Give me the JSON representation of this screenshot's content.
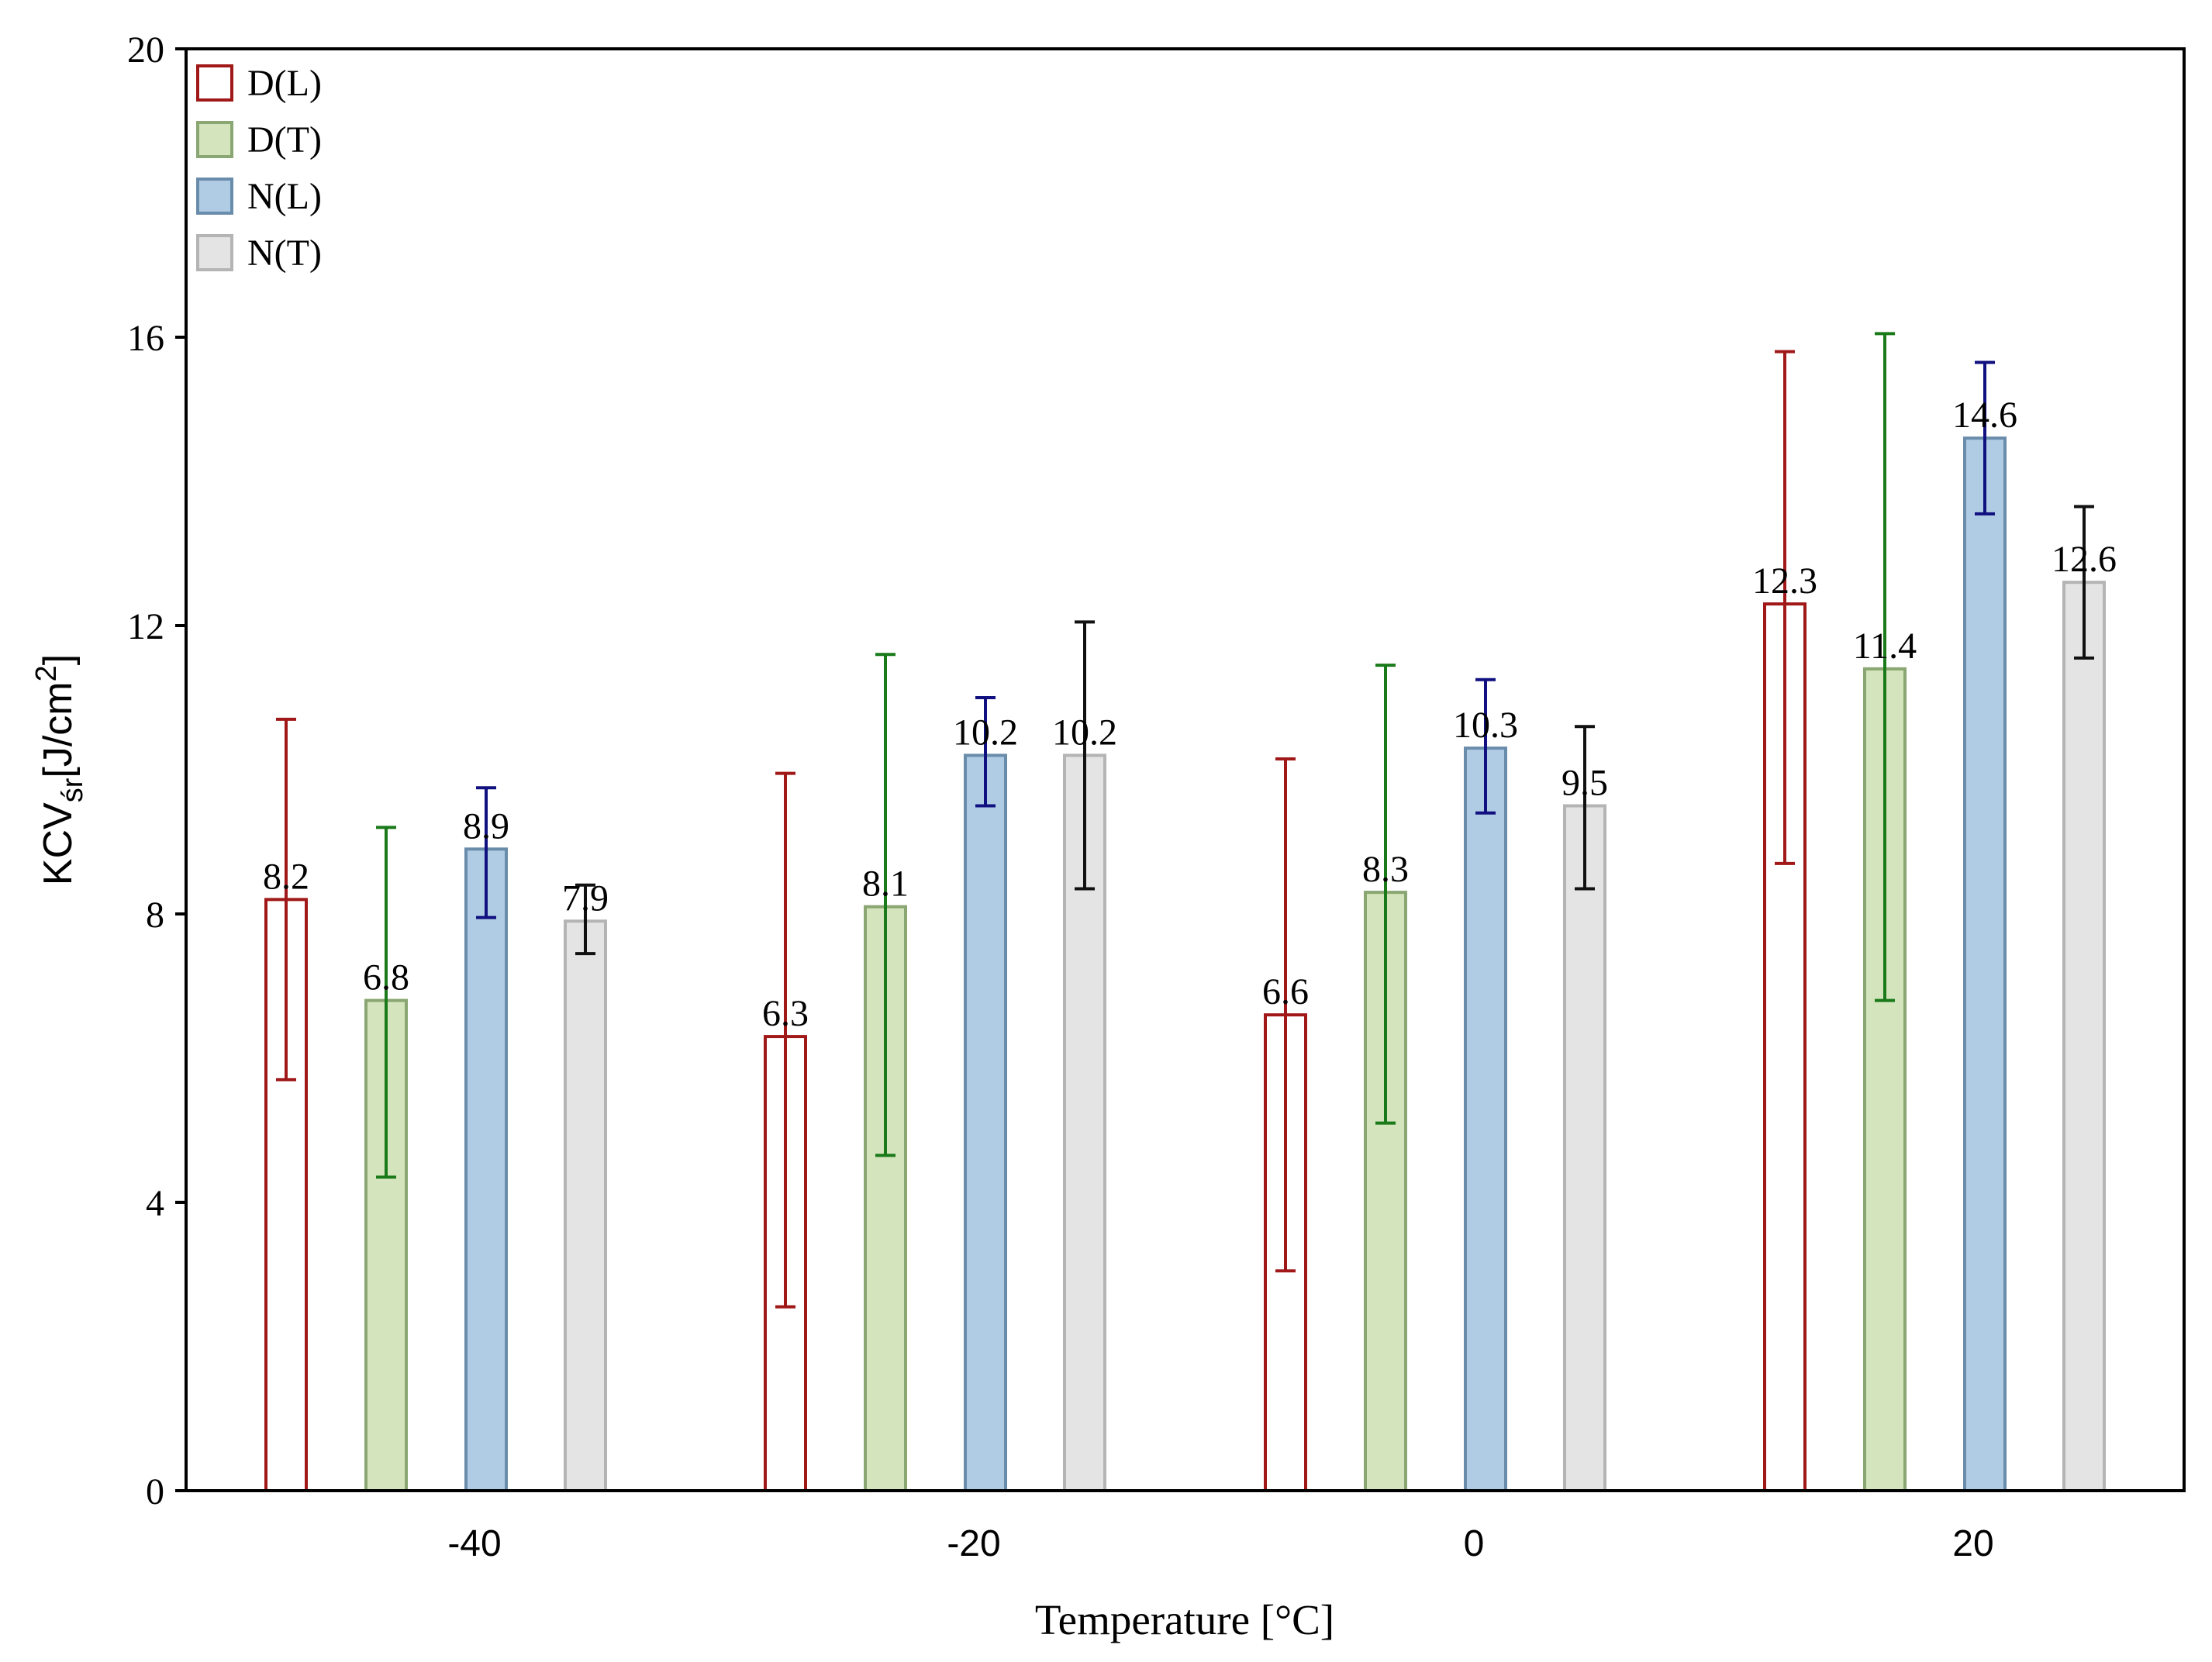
{
  "chart_data": {
    "type": "bar",
    "title": "",
    "xlabel": "Temperature [°C]",
    "ylabel": {
      "main": "KCV",
      "sub": "śr",
      "unit_prefix": "[J/cm",
      "unit_sup": "2",
      "unit_suffix": "]"
    },
    "categories": [
      "-40",
      "-20",
      "0",
      "20"
    ],
    "ylim": [
      0,
      20
    ],
    "yticks": [
      "0",
      "4",
      "8",
      "12",
      "16",
      "20"
    ],
    "grid": false,
    "legend_position": "top-left",
    "series": [
      {
        "name": "D(L)",
        "values": [
          8.2,
          6.3,
          6.6,
          12.3
        ],
        "labels": [
          "8.2",
          "6.3",
          "6.6",
          "12.3"
        ],
        "error_low": [
          5.7,
          2.55,
          3.05,
          8.7
        ],
        "error_high": [
          10.7,
          9.95,
          10.15,
          15.8
        ],
        "fill": "#ffffff",
        "stroke": "#a01818",
        "error_color": "#a01818"
      },
      {
        "name": "D(T)",
        "values": [
          6.8,
          8.1,
          8.3,
          11.4
        ],
        "labels": [
          "6.8",
          "8.1",
          "8.3",
          "11.4"
        ],
        "error_low": [
          4.35,
          4.65,
          5.1,
          6.8
        ],
        "error_high": [
          9.2,
          11.6,
          11.45,
          16.05
        ],
        "fill": "#d4e4bc",
        "stroke": "#8aa672",
        "error_color": "#1a7a1a"
      },
      {
        "name": "N(L)",
        "values": [
          8.9,
          10.2,
          10.3,
          14.6
        ],
        "labels": [
          "8.9",
          "10.2",
          "10.3",
          "14.6"
        ],
        "error_low": [
          7.95,
          9.5,
          9.4,
          13.55
        ],
        "error_high": [
          9.75,
          11.0,
          11.25,
          15.65
        ],
        "fill": "#b0cce4",
        "stroke": "#6a8cab",
        "error_color": "#101080"
      },
      {
        "name": "N(T)",
        "values": [
          7.9,
          10.2,
          9.5,
          12.6
        ],
        "labels": [
          "7.9",
          "10.2",
          "9.5",
          "12.6"
        ],
        "error_low": [
          7.45,
          8.35,
          8.35,
          11.55
        ],
        "error_high": [
          8.4,
          12.05,
          10.6,
          13.65
        ],
        "fill": "#e4e4e4",
        "stroke": "#b4b4b4",
        "error_color": "#111111"
      }
    ]
  }
}
